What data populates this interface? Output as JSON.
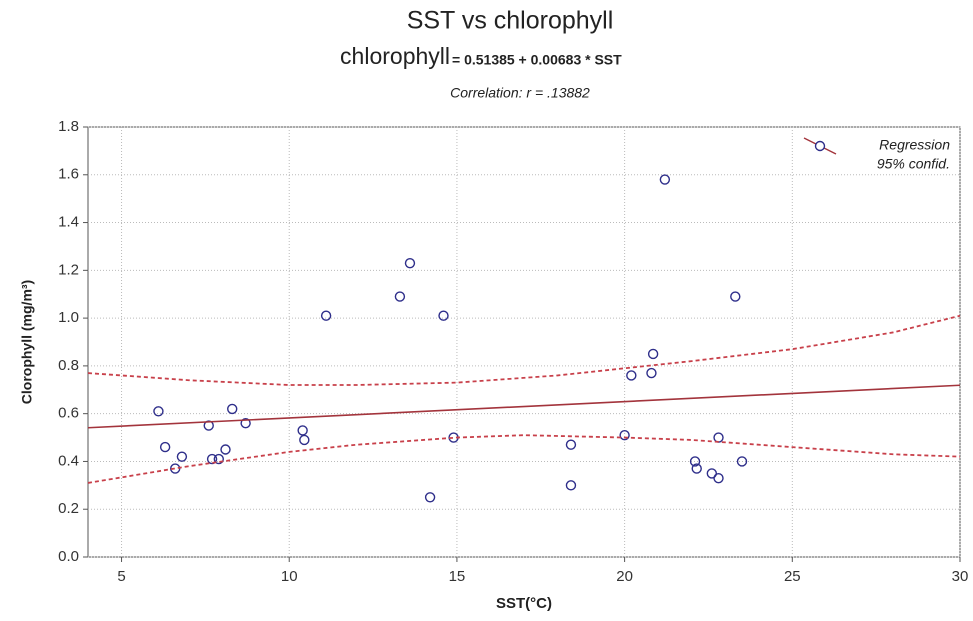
{
  "chart_data": {
    "type": "scatter",
    "title": "SST vs chlorophyll",
    "subtitle": [
      "chlorophyll",
      "= 0.51385 + 0.00683 * SST"
    ],
    "annotation": "Correlation: r = .13882",
    "x_label": "SST(°C)",
    "y_label": "Clorophyll (mg/m³)",
    "xlim": [
      4,
      30
    ],
    "ylim": [
      0,
      1.8
    ],
    "xticks": [
      5,
      10,
      15,
      20,
      25,
      30
    ],
    "yticks": [
      {
        "value": 0,
        "label": "0.0"
      },
      0.2,
      0.4,
      0.6,
      0.8,
      {
        "value": 1,
        "label": "1.0"
      },
      1.2,
      1.4,
      1.6,
      1.8
    ],
    "grid": true,
    "legend": "top-right",
    "series": [
      {
        "type": "scatter",
        "color": "#2e2e8a",
        "x": [
          6.1,
          6.3,
          6.6,
          6.8,
          7.6,
          7.7,
          7.9,
          8.1,
          8.3,
          8.7,
          10.4,
          10.45,
          11.1,
          13.3,
          13.6,
          14.2,
          14.6,
          14.9,
          18.4,
          18.4,
          20.0,
          20.2,
          20.8,
          20.85,
          21.2,
          22.1,
          22.15,
          22.6,
          22.8,
          22.8,
          23.3,
          23.5
        ],
        "values": [
          0.61,
          0.46,
          0.37,
          0.42,
          0.55,
          0.41,
          0.41,
          0.45,
          0.62,
          0.56,
          0.53,
          0.49,
          1.01,
          1.09,
          1.23,
          0.25,
          1.01,
          0.5,
          0.47,
          0.3,
          0.51,
          0.76,
          0.77,
          0.85,
          1.58,
          0.4,
          0.37,
          0.35,
          0.5,
          0.33,
          1.09,
          0.4
        ]
      },
      {
        "type": "line",
        "name": "Regression",
        "color": "#a3343c",
        "dashed": false,
        "x": [
          4,
          30
        ],
        "values": [
          0.541,
          0.719
        ]
      },
      {
        "type": "line",
        "name": "95% confid.",
        "color": "#c8404a",
        "dashed": true,
        "x": [
          4,
          7,
          10,
          12,
          15,
          18,
          20,
          22,
          25,
          28,
          30
        ],
        "values": [
          0.77,
          0.74,
          0.72,
          0.72,
          0.73,
          0.76,
          0.79,
          0.82,
          0.87,
          0.94,
          1.01
        ]
      },
      {
        "type": "line",
        "color": "#c8404a",
        "dashed": true,
        "x": [
          4,
          7,
          10,
          12,
          15,
          17,
          20,
          22,
          25,
          28,
          30
        ],
        "values": [
          0.31,
          0.38,
          0.44,
          0.47,
          0.5,
          0.51,
          0.5,
          0.49,
          0.46,
          0.43,
          0.42
        ]
      }
    ]
  }
}
